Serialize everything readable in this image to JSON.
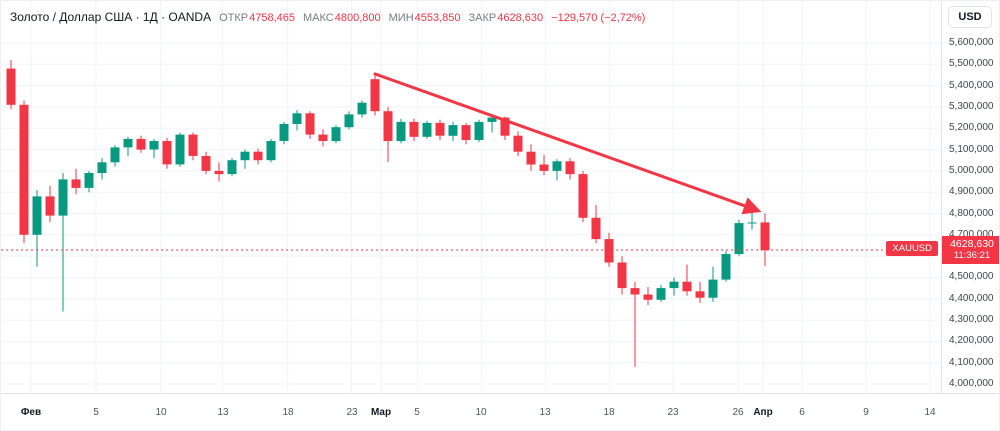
{
  "header": {
    "symbol_title": "Золото / Доллар США · 1Д · OANDA",
    "ohlc": [
      {
        "label": "ОТКР",
        "value": "4758,465"
      },
      {
        "label": "МАКС",
        "value": "4800,800"
      },
      {
        "label": "МИН",
        "value": "4553,850"
      },
      {
        "label": "ЗАКР",
        "value": "4628,630"
      }
    ],
    "change": "−129,570 (−2,72%)",
    "currency_button": "USD"
  },
  "colors": {
    "up": "#089981",
    "down": "#f23645",
    "grid": "#f0f3fa",
    "axis_text": "#41444f",
    "text": "#131722"
  },
  "price_label": {
    "symbol": "XAUUSD",
    "price": "4628,630",
    "countdown": "11:36:21"
  },
  "price_axis": {
    "labels": [
      {
        "label": "5,600,000",
        "value": 5600
      },
      {
        "label": "5,500,000",
        "value": 5500
      },
      {
        "label": "5,400,000",
        "value": 5400
      },
      {
        "label": "5,300,000",
        "value": 5300
      },
      {
        "label": "5,200,000",
        "value": 5200
      },
      {
        "label": "5,100,000",
        "value": 5100
      },
      {
        "label": "5,000,000",
        "value": 5000
      },
      {
        "label": "4,900,000",
        "value": 4900
      },
      {
        "label": "4,800,000",
        "value": 4800
      },
      {
        "label": "4,700,000",
        "value": 4700
      },
      {
        "label": "4,600,000",
        "value": 4600
      },
      {
        "label": "4,500,000",
        "value": 4500
      },
      {
        "label": "4,400,000",
        "value": 4400
      },
      {
        "label": "4,300,000",
        "value": 4300
      },
      {
        "label": "4,200,000",
        "value": 4200
      },
      {
        "label": "4,100,000",
        "value": 4100
      },
      {
        "label": "4,000,000",
        "value": 4000
      }
    ]
  },
  "time_axis": {
    "ticks": [
      {
        "label": "Фев",
        "pos": 0.032,
        "major": true
      },
      {
        "label": "5",
        "pos": 0.101,
        "major": false
      },
      {
        "label": "10",
        "pos": 0.17,
        "major": false
      },
      {
        "label": "13",
        "pos": 0.236,
        "major": false
      },
      {
        "label": "18",
        "pos": 0.305,
        "major": false
      },
      {
        "label": "23",
        "pos": 0.373,
        "major": false
      },
      {
        "label": "Мар",
        "pos": 0.404,
        "major": true
      },
      {
        "label": "5",
        "pos": 0.443,
        "major": false
      },
      {
        "label": "10",
        "pos": 0.511,
        "major": false
      },
      {
        "label": "13",
        "pos": 0.579,
        "major": false
      },
      {
        "label": "18",
        "pos": 0.647,
        "major": false
      },
      {
        "label": "23",
        "pos": 0.715,
        "major": false
      },
      {
        "label": "26",
        "pos": 0.784,
        "major": false
      },
      {
        "label": "Апр",
        "pos": 0.811,
        "major": true
      },
      {
        "label": "6",
        "pos": 0.852,
        "major": false
      },
      {
        "label": "9",
        "pos": 0.92,
        "major": false
      },
      {
        "label": "14",
        "pos": 0.988,
        "major": false
      }
    ]
  },
  "chart_data": {
    "type": "candlestick",
    "symbol": "XAUUSD",
    "timeframe": "1Д",
    "source": "OANDA",
    "ylim": [
      4000,
      5600
    ],
    "grid": true,
    "current_price": 4628.63,
    "candles": [
      [
        5480,
        5520,
        5290,
        5310
      ],
      [
        5310,
        5330,
        4660,
        4700
      ],
      [
        4700,
        4910,
        4550,
        4880
      ],
      [
        4880,
        4930,
        4760,
        4790
      ],
      [
        4790,
        4990,
        4340,
        4960
      ],
      [
        4960,
        5010,
        4890,
        4920
      ],
      [
        4920,
        5000,
        4900,
        4990
      ],
      [
        4990,
        5060,
        4960,
        5040
      ],
      [
        5040,
        5120,
        5020,
        5110
      ],
      [
        5110,
        5160,
        5070,
        5150
      ],
      [
        5150,
        5165,
        5085,
        5100
      ],
      [
        5100,
        5150,
        5060,
        5140
      ],
      [
        5140,
        5155,
        5010,
        5030
      ],
      [
        5030,
        5180,
        5020,
        5170
      ],
      [
        5170,
        5180,
        5050,
        5070
      ],
      [
        5070,
        5090,
        4985,
        5000
      ],
      [
        5000,
        5040,
        4950,
        4985
      ],
      [
        4985,
        5060,
        4975,
        5050
      ],
      [
        5050,
        5100,
        5010,
        5090
      ],
      [
        5090,
        5105,
        5030,
        5050
      ],
      [
        5050,
        5150,
        5040,
        5140
      ],
      [
        5140,
        5230,
        5125,
        5220
      ],
      [
        5220,
        5285,
        5190,
        5270
      ],
      [
        5270,
        5280,
        5150,
        5170
      ],
      [
        5170,
        5195,
        5115,
        5140
      ],
      [
        5140,
        5215,
        5130,
        5205
      ],
      [
        5205,
        5280,
        5195,
        5265
      ],
      [
        5265,
        5330,
        5250,
        5320
      ],
      [
        5430,
        5450,
        5260,
        5280
      ],
      [
        5280,
        5300,
        5040,
        5140
      ],
      [
        5140,
        5245,
        5130,
        5230
      ],
      [
        5230,
        5245,
        5140,
        5160
      ],
      [
        5160,
        5235,
        5150,
        5225
      ],
      [
        5225,
        5240,
        5145,
        5165
      ],
      [
        5165,
        5230,
        5140,
        5215
      ],
      [
        5215,
        5225,
        5125,
        5145
      ],
      [
        5145,
        5240,
        5135,
        5230
      ],
      [
        5230,
        5265,
        5180,
        5250
      ],
      [
        5250,
        5255,
        5145,
        5165
      ],
      [
        5165,
        5185,
        5070,
        5090
      ],
      [
        5090,
        5125,
        5000,
        5030
      ],
      [
        5030,
        5075,
        4980,
        5000
      ],
      [
        5000,
        5055,
        4955,
        5045
      ],
      [
        5045,
        5060,
        4960,
        4985
      ],
      [
        4985,
        5000,
        4760,
        4780
      ],
      [
        4780,
        4840,
        4660,
        4680
      ],
      [
        4680,
        4710,
        4550,
        4570
      ],
      [
        4570,
        4600,
        4420,
        4450
      ],
      [
        4450,
        4480,
        4080,
        4420
      ],
      [
        4420,
        4455,
        4370,
        4395
      ],
      [
        4395,
        4465,
        4385,
        4450
      ],
      [
        4450,
        4500,
        4415,
        4480
      ],
      [
        4480,
        4560,
        4415,
        4435
      ],
      [
        4435,
        4480,
        4380,
        4405
      ],
      [
        4405,
        4550,
        4385,
        4490
      ],
      [
        4490,
        4625,
        4480,
        4610
      ],
      [
        4610,
        4770,
        4600,
        4755
      ],
      [
        4755,
        4805,
        4725,
        4758
      ],
      [
        4758.465,
        4800.8,
        4553.85,
        4628.63
      ]
    ],
    "trend_line": {
      "x1_index": 28,
      "price1": 5455,
      "x2_index": 57.4,
      "price2": 4815
    }
  }
}
